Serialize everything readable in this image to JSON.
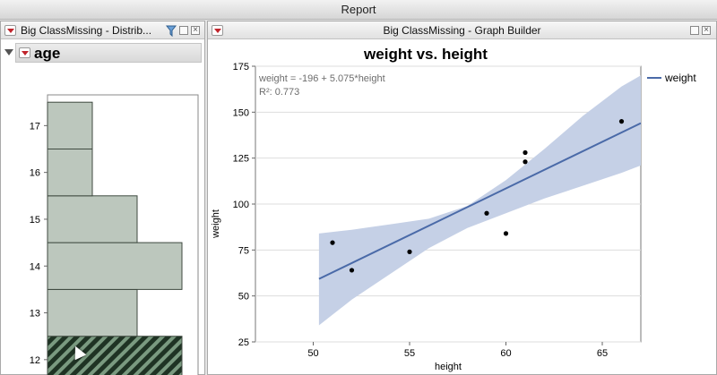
{
  "window": {
    "title": "Report"
  },
  "distribution_panel": {
    "title": "Big ClassMissing - Distrib...",
    "variable": "age",
    "chart_data": {
      "type": "bar",
      "orientation": "horizontal",
      "categories": [
        "12",
        "13",
        "14",
        "15",
        "16",
        "17"
      ],
      "values": [
        3,
        2,
        3,
        2,
        1,
        1
      ],
      "selected_category": "12",
      "colors": {
        "bar": "#bcc7bd",
        "selected_fill": "#1f3324",
        "selected_stripe": "#7a9a80",
        "edge": "#3f4a40"
      }
    }
  },
  "graph_panel": {
    "title": "Big ClassMissing - Graph Builder",
    "chart_data": {
      "type": "scatter",
      "title": "weight vs. height",
      "xlabel": "height",
      "ylabel": "weight",
      "xlim": [
        47,
        67
      ],
      "ylim": [
        25,
        175
      ],
      "xticks": [
        50,
        55,
        60,
        65
      ],
      "yticks": [
        25,
        50,
        75,
        100,
        125,
        150,
        175
      ],
      "points": [
        {
          "x": 51,
          "y": 79
        },
        {
          "x": 52,
          "y": 64
        },
        {
          "x": 55,
          "y": 74
        },
        {
          "x": 59,
          "y": 95
        },
        {
          "x": 60,
          "y": 84
        },
        {
          "x": 61,
          "y": 123
        },
        {
          "x": 61,
          "y": 128
        },
        {
          "x": 66,
          "y": 145
        }
      ],
      "fit": {
        "intercept": -196,
        "slope": 5.075,
        "x_from": 50.3,
        "x_to": 67
      },
      "confidence_band": {
        "x": [
          50.3,
          52,
          54,
          56,
          58,
          60,
          62,
          64,
          66,
          67
        ],
        "upper": [
          84,
          86,
          89,
          92,
          99,
          113,
          130,
          148,
          164,
          170
        ],
        "lower": [
          34,
          48,
          62,
          76,
          87,
          95,
          103,
          110,
          117,
          121
        ]
      },
      "equation": "weight = -196 + 5.075*height",
      "r2": "R²: 0.773",
      "legend": {
        "label": "weight",
        "position": "right"
      },
      "colors": {
        "line": "#4a6aa8",
        "band": "#c5d0e6",
        "points": "#000000",
        "grid": "#dddddd"
      }
    }
  }
}
